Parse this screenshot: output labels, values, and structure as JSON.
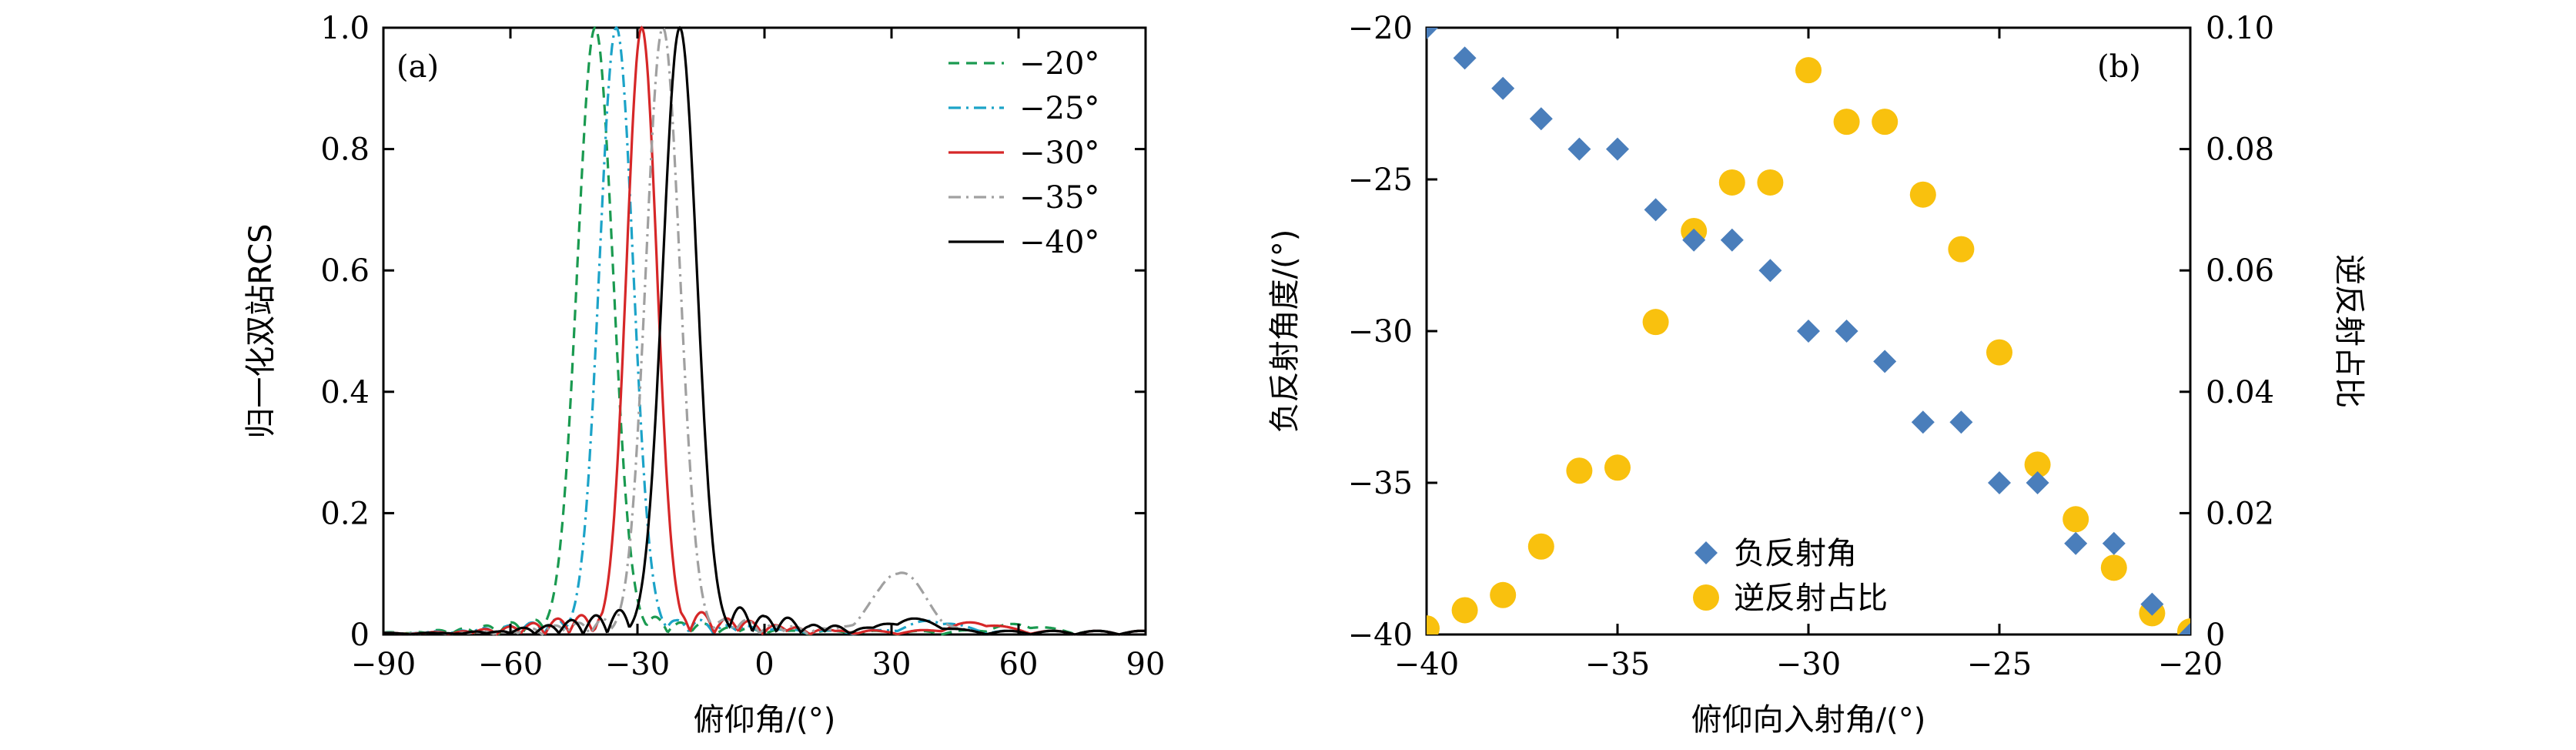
{
  "chart_data": [
    {
      "type": "line",
      "panel_tag": "(a)",
      "xlabel": "俯仰角/(°)",
      "ylabel": "归一化双站RCS",
      "xlim": [
        -90,
        90
      ],
      "ylim": [
        0,
        1.0
      ],
      "xticks": [
        -90,
        -60,
        -30,
        0,
        30,
        60,
        90
      ],
      "xtick_labels": [
        "−90",
        "−60",
        "−30",
        "0",
        "30",
        "60",
        "90"
      ],
      "yticks": [
        0,
        0.2,
        0.4,
        0.6,
        0.8,
        1.0
      ],
      "ytick_labels": [
        "0",
        "0.2",
        "0.4",
        "0.6",
        "0.8",
        "1.0"
      ],
      "grid": false,
      "legend": "top-right",
      "series": [
        {
          "name": "−20°",
          "color": "#1a9a50",
          "dash": "dashed",
          "peak": -40,
          "width": 4.2,
          "side_amp": 0.03,
          "far_amp": 0.012,
          "far_center": 60,
          "far_amp2": 0.0
        },
        {
          "name": "−25°",
          "color": "#1ca3c8",
          "dash": "dashdot",
          "peak": -35,
          "width": 4.0,
          "side_amp": 0.03,
          "far_amp": 0.018,
          "far_center": 40,
          "far_amp2": 0.0
        },
        {
          "name": "−30°",
          "color": "#d62728",
          "dash": "solid",
          "peak": -29,
          "width": 3.6,
          "side_amp": 0.04,
          "far_amp": 0.015,
          "far_center": 50,
          "far_amp2": 0.0
        },
        {
          "name": "−35°",
          "color": "#a0a0a0",
          "dash": "dashdot",
          "peak": -24,
          "width": 4.0,
          "side_amp": 0.03,
          "far_amp": 0.1,
          "far_center": 32,
          "far_amp2": 0.0
        },
        {
          "name": "−40°",
          "color": "#000000",
          "dash": "solid",
          "peak": -20,
          "width": 4.0,
          "side_amp": 0.05,
          "far_amp": 0.02,
          "far_center": 35,
          "far_amp2": 0.0
        }
      ]
    },
    {
      "type": "scatter",
      "panel_tag": "(b)",
      "xlabel": "俯仰向入射角/(°)",
      "ylabel": "负反射角度/(°)",
      "ylabel_right": "逆反射占比",
      "xlim": [
        -40,
        -20
      ],
      "ylim": [
        -40,
        -20
      ],
      "ylim_right": [
        0,
        0.1
      ],
      "xticks": [
        -40,
        -35,
        -30,
        -25,
        -20
      ],
      "xtick_labels": [
        "−40",
        "−35",
        "−30",
        "−25",
        "−20"
      ],
      "yticks": [
        -40,
        -35,
        -30,
        -25,
        -20
      ],
      "ytick_labels": [
        "−40",
        "−35",
        "−30",
        "−25",
        "−20"
      ],
      "yticks_right": [
        0,
        0.02,
        0.04,
        0.06,
        0.08,
        0.1
      ],
      "ytick_labels_right": [
        "0",
        "0.02",
        "0.04",
        "0.06",
        "0.08",
        "0.10"
      ],
      "grid": false,
      "legend": "bottom-center",
      "series": [
        {
          "name": "负反射角",
          "axis": "left",
          "marker": "diamond",
          "color": "#4a7ebb",
          "x": [
            -40,
            -39,
            -38,
            -37,
            -36,
            -35,
            -34,
            -33,
            -32,
            -31,
            -30,
            -29,
            -28,
            -27,
            -26,
            -25,
            -24,
            -23,
            -22,
            -21,
            -20
          ],
          "y": [
            -20,
            -21,
            -22,
            -23,
            -24,
            -24,
            -26,
            -27,
            -27,
            -28,
            -30,
            -30,
            -31,
            -33,
            -33,
            -35,
            -35,
            -37,
            -37,
            -39,
            -40
          ]
        },
        {
          "name": "逆反射占比",
          "axis": "right",
          "marker": "circle",
          "color": "#f9c10e",
          "x": [
            -40,
            -39,
            -38,
            -37,
            -36,
            -35,
            -34,
            -33,
            -32,
            -31,
            -30,
            -29,
            -28,
            -27,
            -26,
            -25,
            -24,
            -23,
            -22,
            -21,
            -20
          ],
          "y": [
            0.001,
            0.004,
            0.0065,
            0.0145,
            0.027,
            0.0275,
            0.0515,
            0.0665,
            0.0745,
            0.0745,
            0.093,
            0.0845,
            0.0845,
            0.0725,
            0.0635,
            0.0465,
            0.028,
            0.019,
            0.011,
            0.0035,
            0.0005
          ]
        }
      ]
    }
  ]
}
